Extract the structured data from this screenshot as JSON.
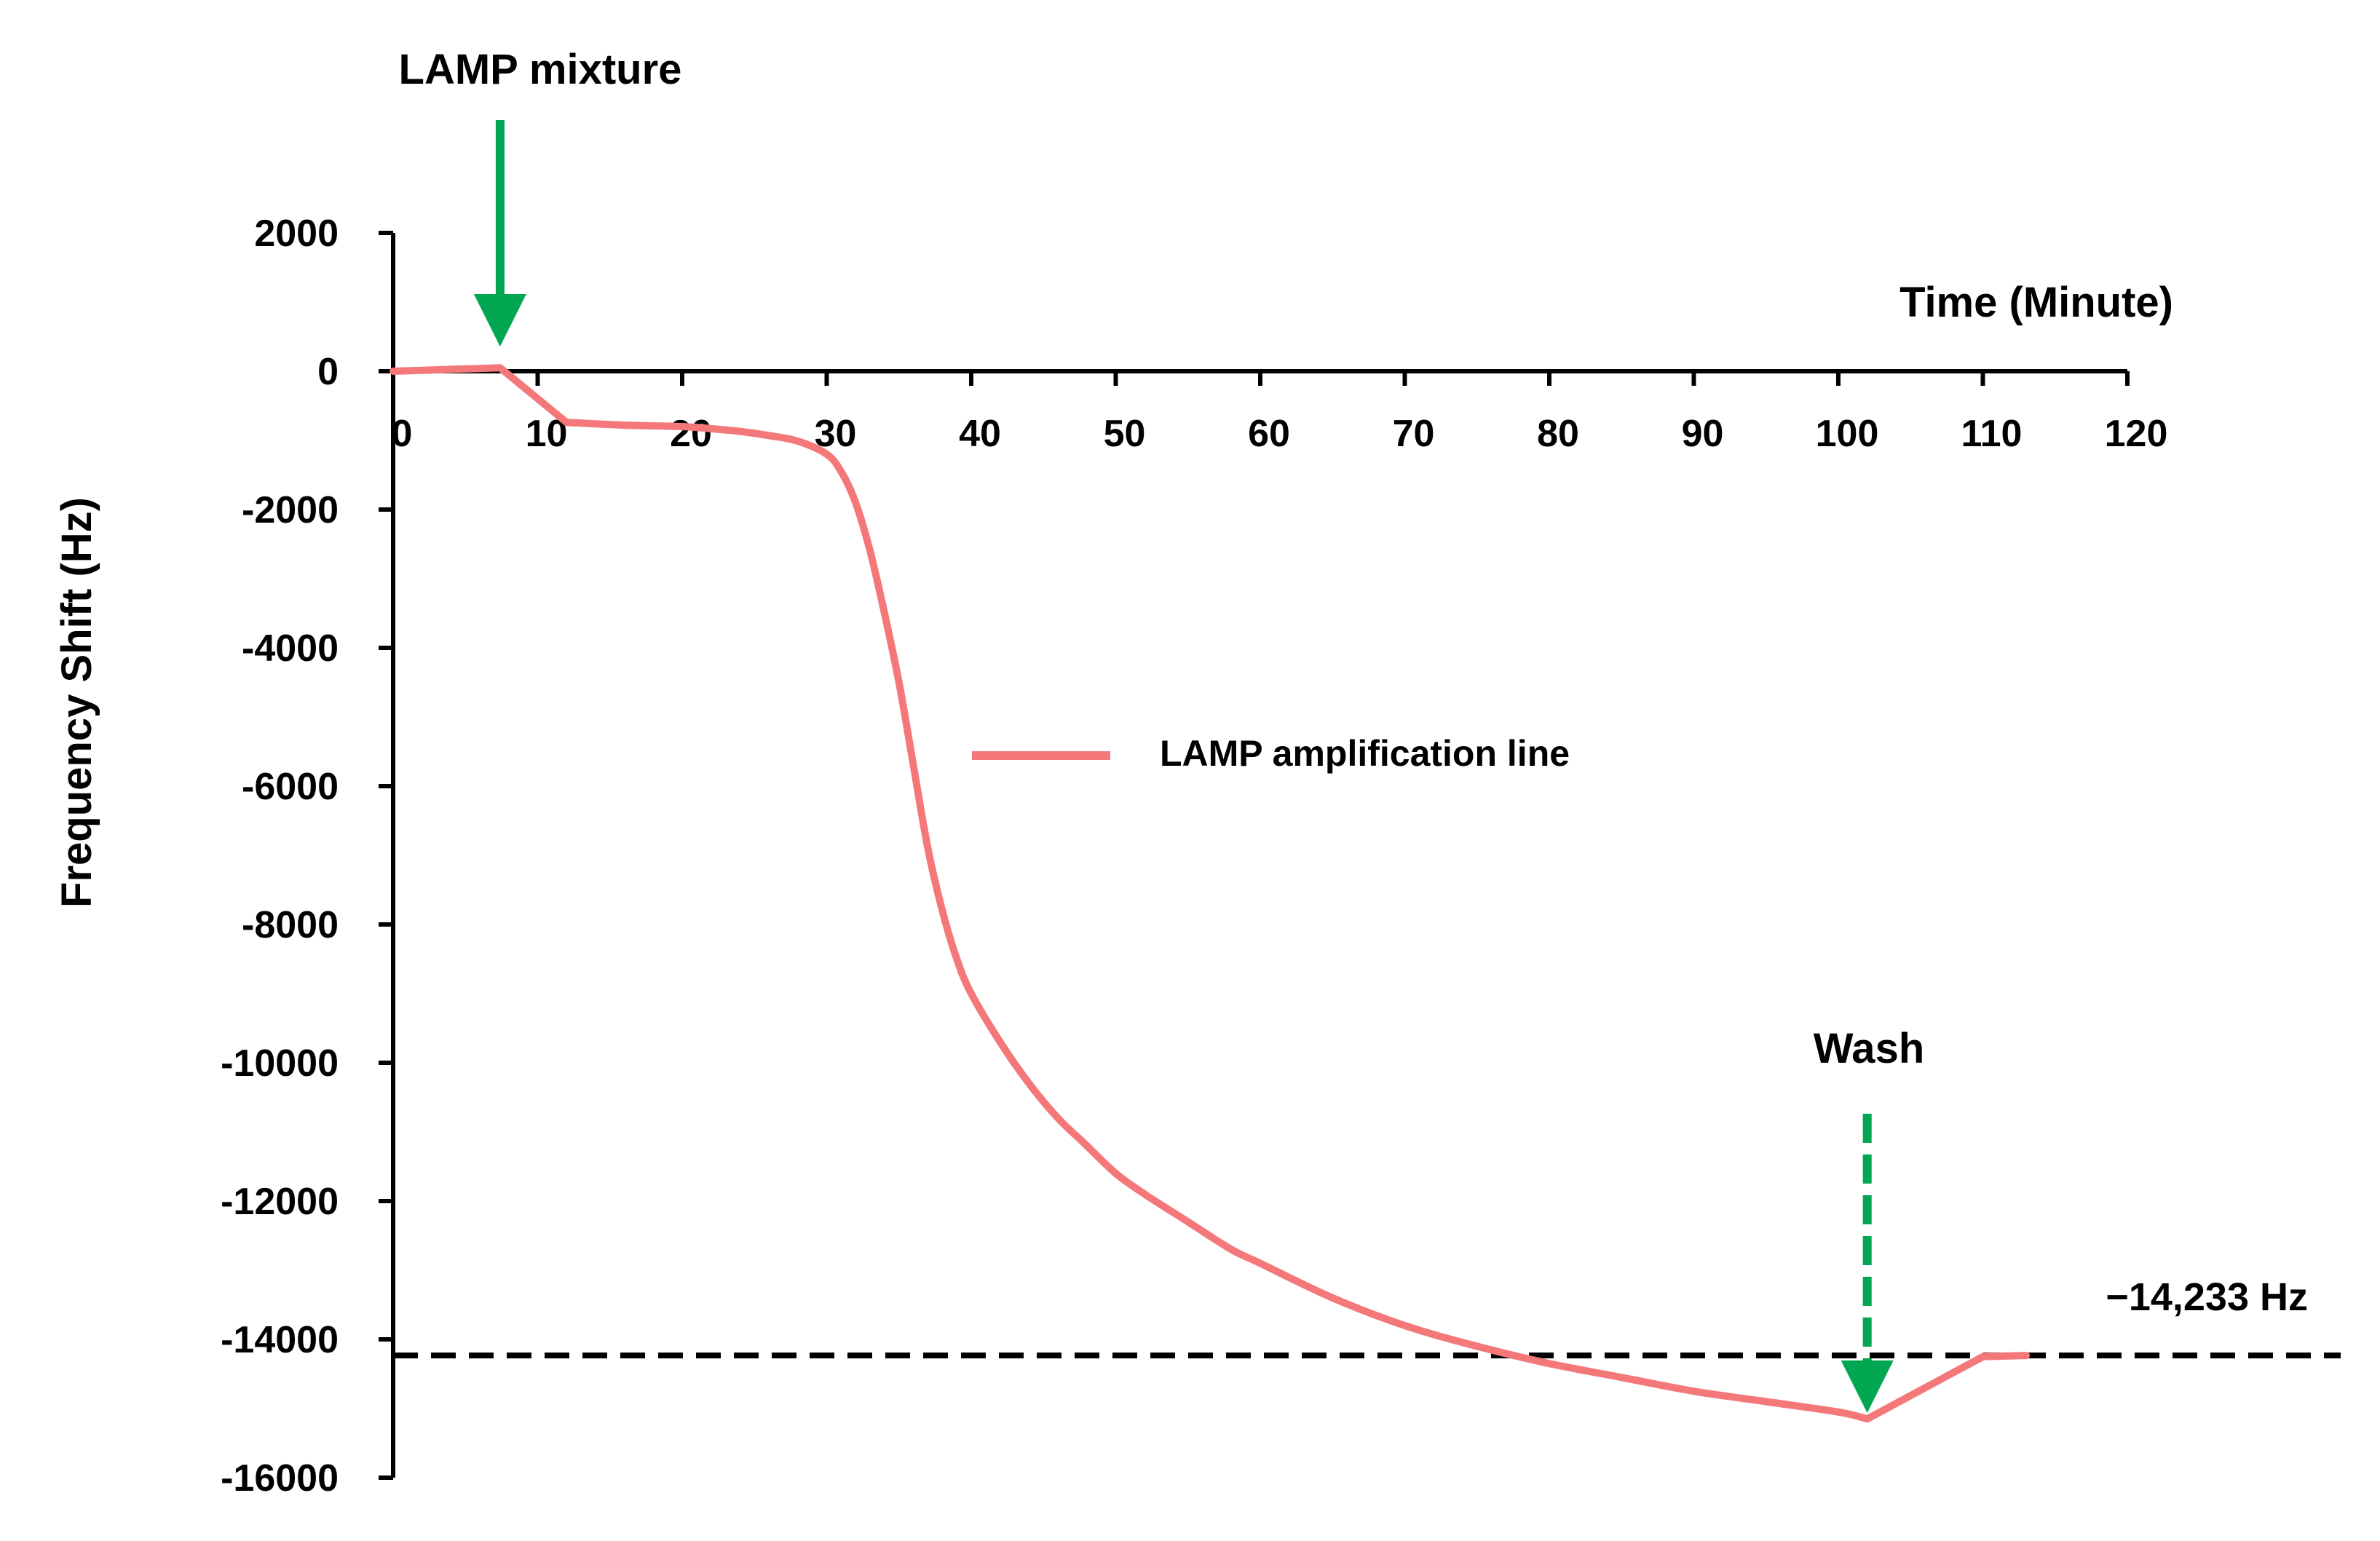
{
  "chart_data": {
    "type": "line",
    "title": "",
    "xlabel": "Time (Minute)",
    "ylabel": "Frequency Shift (Hz)",
    "xlim": [
      0,
      120
    ],
    "ylim": [
      -16000,
      2000
    ],
    "xticks": [
      0,
      10,
      20,
      30,
      40,
      50,
      60,
      70,
      80,
      90,
      100,
      110,
      120
    ],
    "yticks": [
      2000,
      0,
      -2000,
      -4000,
      -6000,
      -8000,
      -10000,
      -12000,
      -14000,
      -16000
    ],
    "x_tick_labels": [
      "0",
      "10",
      "20",
      "30",
      "40",
      "50",
      "60",
      "70",
      "80",
      "90",
      "100",
      "110",
      "120"
    ],
    "y_tick_labels": [
      "2000",
      "0",
      "-2000",
      "-4000",
      "-6000",
      "-8000",
      "-10000",
      "-12000",
      "-14000",
      "-16000"
    ],
    "grid": false,
    "legend_placement": "center",
    "series": [
      {
        "name": "LAMP amplification line",
        "color": "#F4787A",
        "x": [
          0,
          3,
          7.4,
          12,
          16,
          20,
          22,
          24,
          26,
          28,
          30,
          31,
          32,
          33,
          34,
          35,
          36,
          37,
          38,
          39,
          40,
          42,
          44,
          46,
          48,
          50,
          52,
          55,
          58,
          60,
          65,
          70,
          75,
          80,
          85,
          90,
          95,
          100,
          102
        ],
        "y": [
          0,
          20,
          50,
          -740,
          -780,
          -800,
          -830,
          -870,
          -930,
          -1010,
          -1200,
          -1450,
          -1900,
          -2600,
          -3500,
          -4500,
          -5700,
          -6900,
          -7800,
          -8500,
          -9000,
          -9700,
          -10300,
          -10800,
          -11200,
          -11600,
          -11900,
          -12300,
          -12700,
          -12900,
          -13400,
          -13800,
          -14100,
          -14350,
          -14550,
          -14750,
          -14900,
          -15050,
          -15150
        ]
      },
      {
        "name": "",
        "color": "#F4787A",
        "x": [
          102,
          110,
          113
        ],
        "y": [
          -15150,
          -14250,
          -14233
        ]
      }
    ],
    "reference_line": {
      "y": -14233,
      "style": "dashed",
      "color": "#000000"
    },
    "annotations": [
      {
        "text": "LAMP mixture",
        "x": 7.4,
        "arrow": "solid",
        "color": "#00A650"
      },
      {
        "text": "Wash",
        "x": 102,
        "arrow": "dashed",
        "color": "#00A650"
      },
      {
        "text": "−14,233 Hz",
        "y": -14233
      }
    ]
  }
}
